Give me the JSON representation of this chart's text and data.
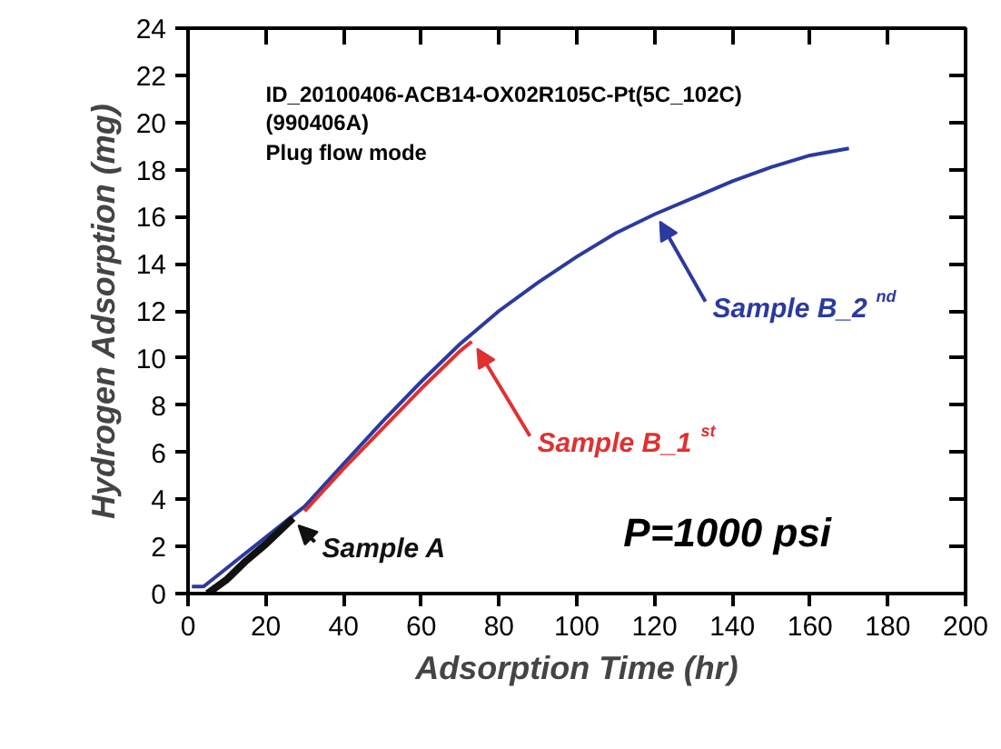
{
  "chart_data": {
    "type": "line",
    "xlabel": "Adsorption Time (hr)",
    "ylabel": "Hydrogen Adsorption (mg)",
    "xlim": [
      0,
      200
    ],
    "xticks": [
      0,
      20,
      40,
      60,
      80,
      100,
      120,
      140,
      160,
      180,
      200
    ],
    "ylim": [
      0,
      24
    ],
    "yticks": [
      0,
      2,
      4,
      6,
      8,
      10,
      12,
      14,
      16,
      18,
      20,
      22,
      24
    ],
    "grid": false,
    "marker": "none",
    "line_style": "solid",
    "annotations": [
      "ID_20100406-ACB14-OX02R105C-Pt(5C_102C)",
      "(990406A)",
      "Plug flow mode",
      "P=1000 psi"
    ],
    "series": [
      {
        "name": "Sample B_2$^{nd}$",
        "color": "#2b3a9e",
        "x": [
          1,
          4,
          30,
          40,
          50,
          60,
          70,
          80,
          90,
          100,
          110,
          120,
          130,
          140,
          150,
          160,
          170
        ],
        "values": [
          0.3,
          0.3,
          3.7,
          5.5,
          7.3,
          9.0,
          10.6,
          12.0,
          13.2,
          14.3,
          15.3,
          16.1,
          16.8,
          17.5,
          18.1,
          18.6,
          18.9
        ]
      },
      {
        "name": "Sample B_1$^{st}$",
        "color": "#e03030",
        "x": [
          30,
          40,
          50,
          60,
          70,
          73
        ],
        "values": [
          3.5,
          5.3,
          7.0,
          8.7,
          10.3,
          10.7
        ]
      },
      {
        "name": "Sample A",
        "color": "#111111",
        "x": [
          5,
          10,
          15,
          20,
          27
        ],
        "values": [
          0,
          0.6,
          1.4,
          2.1,
          3.2
        ]
      }
    ]
  }
}
